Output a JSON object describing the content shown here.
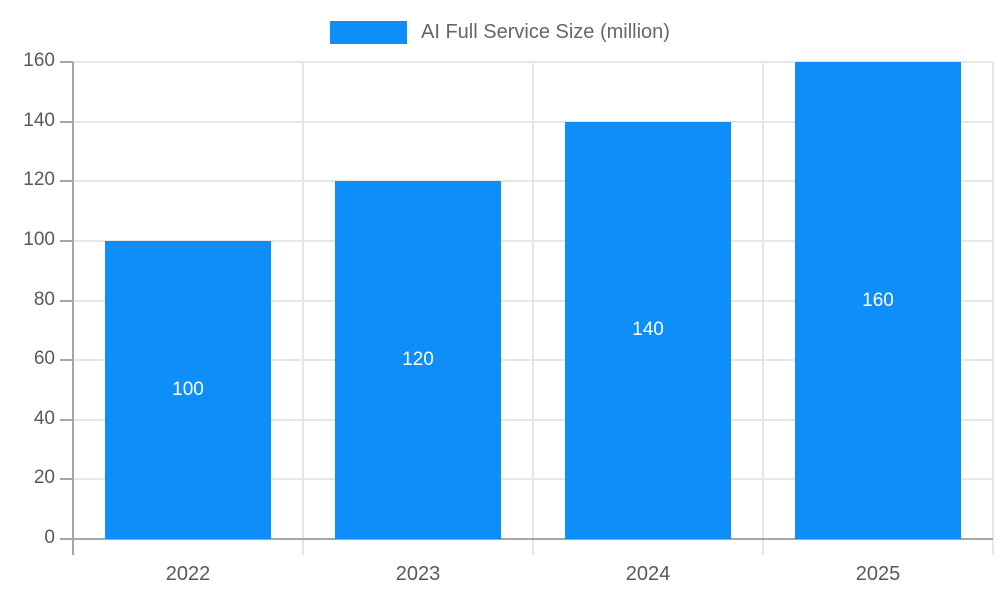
{
  "chart_data": {
    "type": "bar",
    "title": "",
    "legend": {
      "label": "AI Full Service Size (million)",
      "position": "top"
    },
    "categories": [
      "2022",
      "2023",
      "2024",
      "2025"
    ],
    "series": [
      {
        "name": "AI Full Service Size (million)",
        "values": [
          100,
          120,
          140,
          160
        ]
      }
    ],
    "data_labels": [
      "100",
      "120",
      "140",
      "160"
    ],
    "xlabel": "",
    "ylabel": "",
    "ylim": [
      0,
      160
    ],
    "yticks": [
      0,
      20,
      40,
      60,
      80,
      100,
      120,
      140,
      160
    ],
    "grid": true,
    "legend_position": "top"
  },
  "colors": {
    "bar": "#0d8ef9",
    "grid": "#e6e6e6",
    "axis": "#a6a6a6",
    "tick_label": "#595959",
    "legend_label": "#666666",
    "value_label": "#ffffff",
    "background": "#ffffff"
  }
}
